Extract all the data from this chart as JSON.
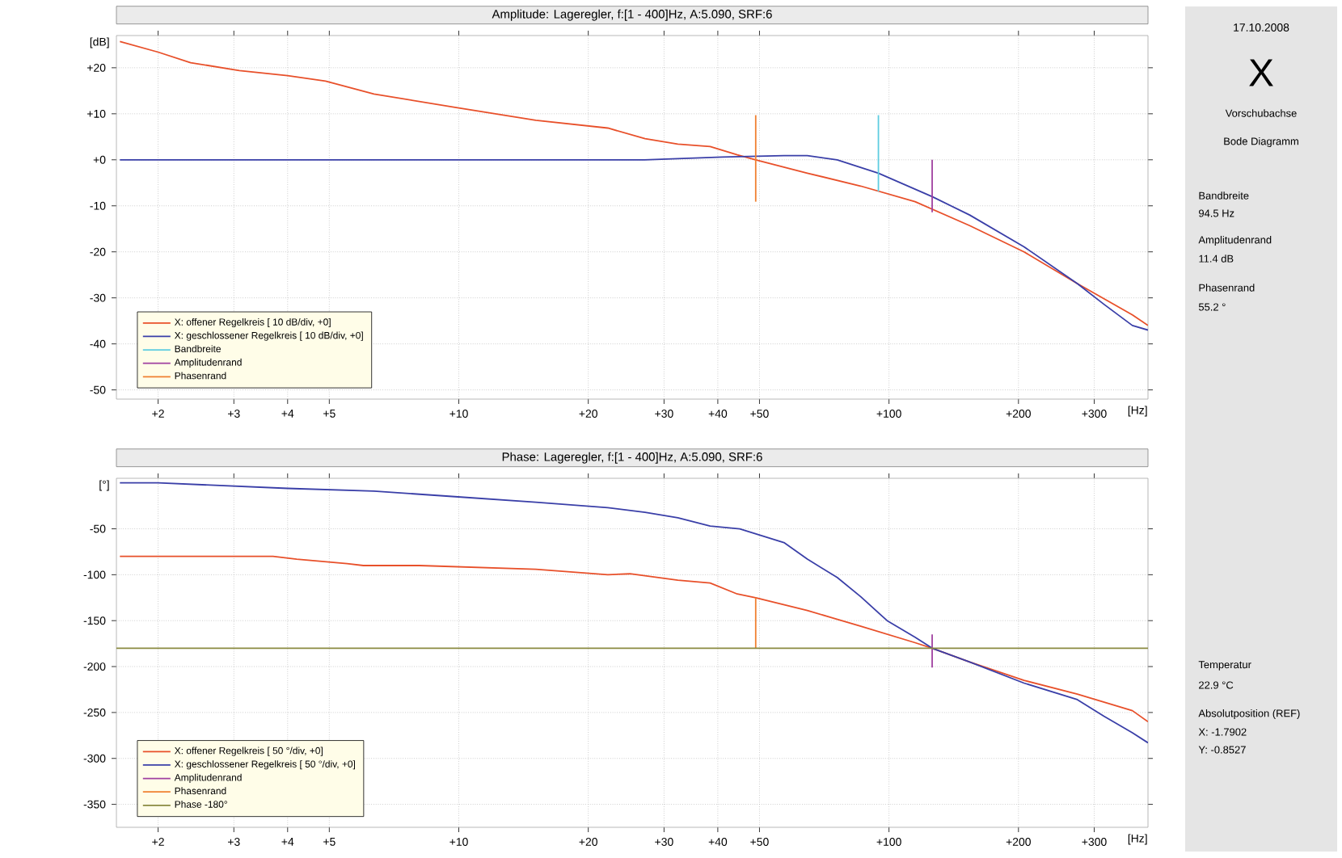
{
  "chart_data": [
    {
      "type": "line",
      "title": "Amplitude: Lageregler, f:[1 - 400]Hz, A:5.090, SRF:6",
      "xlabel": "[Hz]",
      "ylabel": "[dB]",
      "log": "x",
      "grid": true,
      "legend": "bottom left",
      "xlim": [
        1.6,
        400
      ],
      "xticks": [
        {
          "value": 2,
          "label": "+2"
        },
        {
          "value": 3,
          "label": "+3"
        },
        {
          "value": 4,
          "label": "+4"
        },
        {
          "value": 5,
          "label": "+5"
        },
        {
          "value": 10,
          "label": "+10"
        },
        {
          "value": 20,
          "label": "+20"
        },
        {
          "value": 30,
          "label": "+30"
        },
        {
          "value": 40,
          "label": "+40"
        },
        {
          "value": 50,
          "label": "+50"
        },
        {
          "value": 100,
          "label": "+100"
        },
        {
          "value": 200,
          "label": "+200"
        },
        {
          "value": 300,
          "label": "+300"
        }
      ],
      "ylim": [
        -52,
        27
      ],
      "yticks": [
        {
          "value": 20,
          "label": "+20"
        },
        {
          "value": 10,
          "label": "+10"
        },
        {
          "value": 0,
          "label": "+0"
        },
        -10,
        -20,
        -30,
        -40,
        -50
      ],
      "series": [
        {
          "name": "X: offener Regelkreis [ 10 dB/div, +0]",
          "color": "#e8502a",
          "x": [
            1.63,
            2,
            2.38,
            3.09,
            4,
            4.9,
            6.35,
            9.8,
            15.1,
            22.2,
            27.1,
            32.3,
            38.4,
            44.4,
            49,
            64.6,
            85.9,
            115,
            154,
            206,
            274,
            368,
            400
          ],
          "values": [
            25.7,
            23.4,
            21.1,
            19.4,
            18.3,
            17.1,
            14.3,
            11.4,
            8.6,
            6.9,
            4.6,
            3.4,
            2.9,
            1.1,
            0,
            -2.9,
            -5.7,
            -9.1,
            -14.3,
            -20,
            -26.9,
            -33.7,
            -36
          ]
        },
        {
          "name": "X: geschlossener Regelkreis [ 10 dB/div, +0]",
          "color": "#3a3fa8",
          "x": [
            1.63,
            27,
            41,
            57,
            64.6,
            75.8,
            94.5,
            126,
            154,
            206,
            274,
            316,
            368,
            400
          ],
          "values": [
            0,
            0,
            0.6,
            0.9,
            0.9,
            0,
            -2.9,
            -8,
            -12,
            -18.9,
            -26.9,
            -31.4,
            -36,
            -37
          ]
        },
        {
          "name": "Bandbreite",
          "color": "#5ecde0",
          "x": [
            94.5,
            94.5
          ],
          "values": [
            9.7,
            -6.9
          ]
        },
        {
          "name": "Amplitudenrand",
          "color": "#a040a0",
          "x": [
            126,
            126
          ],
          "values": [
            0,
            -11.4
          ]
        },
        {
          "name": "Phasenrand",
          "color": "#f08030",
          "x": [
            49,
            49
          ],
          "values": [
            9.7,
            -9.1
          ]
        }
      ]
    },
    {
      "type": "line",
      "title": "Phase: Lageregler, f:[1 - 400]Hz, A:5.090, SRF:6",
      "xlabel": "[Hz]",
      "ylabel": "[°]",
      "log": "x",
      "grid": true,
      "legend": "bottom left",
      "xlim": [
        1.6,
        400
      ],
      "xticks": [
        {
          "value": 2,
          "label": "+2"
        },
        {
          "value": 3,
          "label": "+3"
        },
        {
          "value": 4,
          "label": "+4"
        },
        {
          "value": 5,
          "label": "+5"
        },
        {
          "value": 10,
          "label": "+10"
        },
        {
          "value": 20,
          "label": "+20"
        },
        {
          "value": 30,
          "label": "+30"
        },
        {
          "value": 40,
          "label": "+40"
        },
        {
          "value": 50,
          "label": "+50"
        },
        {
          "value": 100,
          "label": "+100"
        },
        {
          "value": 200,
          "label": "+200"
        },
        {
          "value": 300,
          "label": "+300"
        }
      ],
      "ylim": [
        -375,
        5
      ],
      "yticks": [
        -50,
        -100,
        -150,
        -200,
        -250,
        -300,
        -350
      ],
      "series": [
        {
          "name": "X: offener Regelkreis [ 50 °/div, +0]",
          "color": "#e8502a",
          "x": [
            1.63,
            3.7,
            4.2,
            5.5,
            6,
            8.1,
            15.1,
            22.2,
            25,
            32.3,
            38.4,
            44.4,
            49,
            64.6,
            86,
            115,
            126,
            154,
            206,
            274,
            368,
            400
          ],
          "values": [
            -80,
            -80,
            -83,
            -88,
            -90,
            -90,
            -94,
            -100,
            -99,
            -106,
            -109,
            -121,
            -125,
            -139,
            -156,
            -174,
            -180,
            -195,
            -215,
            -230,
            -248,
            -260
          ]
        },
        {
          "name": "X: geschlossener Regelkreis [ 50 °/div, +0]",
          "color": "#3a3fa8",
          "x": [
            1.63,
            2,
            4,
            6.35,
            9.8,
            15.1,
            22.2,
            27.1,
            32.3,
            38.4,
            45,
            57,
            64.6,
            75.8,
            86,
            99,
            115,
            126,
            154,
            206,
            274,
            316,
            368,
            400
          ],
          "values": [
            0,
            0,
            -6,
            -9,
            -15,
            -21,
            -27,
            -32,
            -38,
            -47,
            -50,
            -65,
            -83,
            -103,
            -124,
            -150,
            -168,
            -180,
            -195,
            -218,
            -236,
            -254,
            -272,
            -283
          ]
        },
        {
          "name": "Amplitudenrand",
          "color": "#a040a0",
          "x": [
            126,
            126
          ],
          "values": [
            -165,
            -201
          ]
        },
        {
          "name": "Phasenrand",
          "color": "#f08030",
          "x": [
            49,
            49
          ],
          "values": [
            -125,
            -180
          ]
        },
        {
          "name": "Phase -180°",
          "color": "#8a8a40",
          "x": [
            1.6,
            400
          ],
          "values": [
            -180,
            -180
          ]
        }
      ]
    },
    {
      "type": "other",
      "annotations": [
        "17.10.2008",
        "X",
        "Vorschubachse",
        "Bode Diagramm",
        "Bandbreite",
        "94.5 Hz",
        "Amplitudenrand",
        "11.4 dB",
        "Phasenrand",
        "55.2 °",
        "Temperatur",
        "22.9 °C",
        "Absolutposition (REF)",
        "X: -1.7902",
        "Y: -0.8527"
      ]
    }
  ]
}
